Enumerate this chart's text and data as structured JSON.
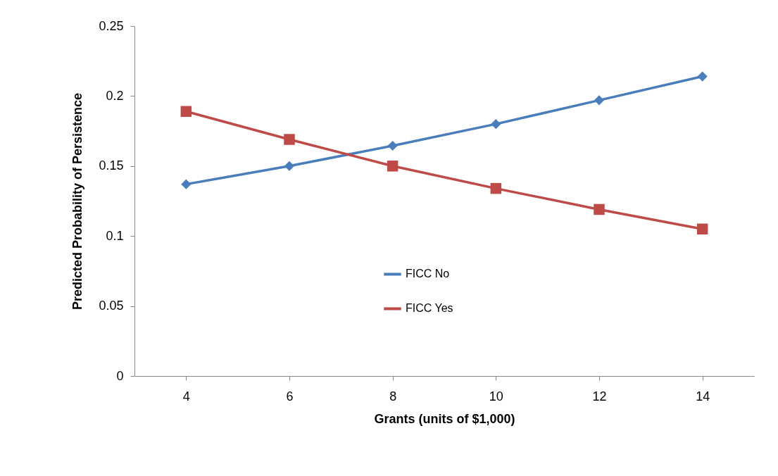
{
  "chart_data": {
    "type": "line",
    "xlabel": "Grants (units of $1,000)",
    "ylabel": "Predicted Probability of Persistence",
    "categories": [
      "4",
      "6",
      "8",
      "10",
      "12",
      "14"
    ],
    "ylim": [
      0,
      0.25
    ],
    "yticks": [
      0,
      0.05,
      0.1,
      0.15,
      0.2,
      0.25
    ],
    "grid": false,
    "legend": "bottom",
    "line_style": "solid",
    "series": [
      {
        "name": "FICC No",
        "color": "#4a7ebb",
        "marker": "diamond",
        "values": [
          0.137,
          0.15,
          0.1645,
          0.18,
          0.197,
          0.214
        ]
      },
      {
        "name": "FICC Yes",
        "color": "#be4b48",
        "marker": "square",
        "values": [
          0.189,
          0.169,
          0.15,
          0.134,
          0.119,
          0.105
        ]
      }
    ]
  }
}
